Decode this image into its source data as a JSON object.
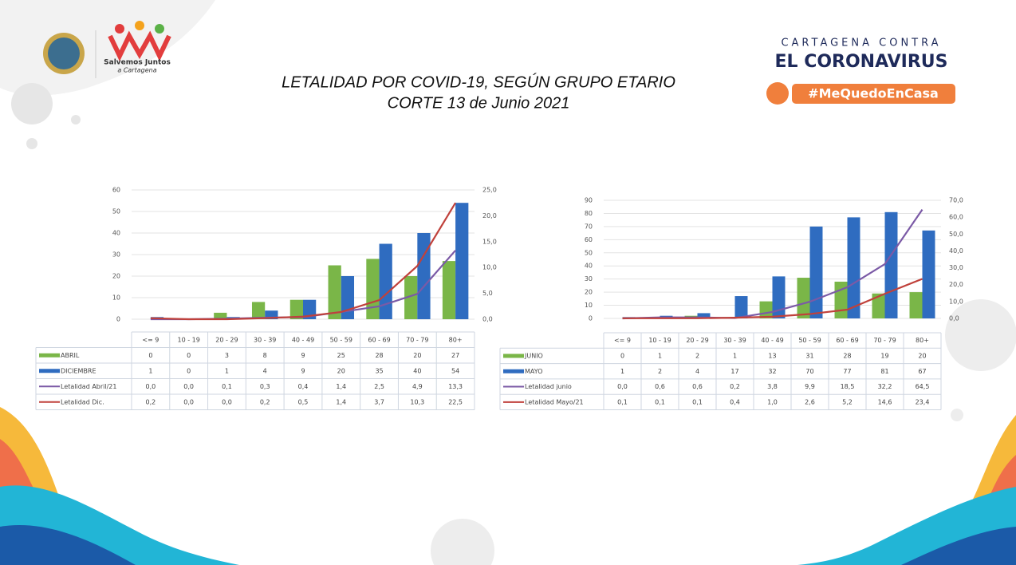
{
  "header": {
    "title_line1": "LETALIDAD POR COVID-19, SEGÚN GRUPO ETARIO",
    "title_line2": "CORTE  13 de Junio 2021",
    "logo_left_line1": "Salvemos Juntos",
    "logo_left_line2": "a Cartagena",
    "logo_right_line1": "CARTAGENA CONTRA",
    "logo_right_line2": "EL CORONAVIRUS",
    "logo_right_tag": "#MeQuedoEnCasa"
  },
  "chart_data": [
    {
      "type": "bar-line",
      "categories": [
        "<= 9",
        "10 - 19",
        "20 - 29",
        "30 - 39",
        "40 - 49",
        "50 - 59",
        "60 - 69",
        "70 - 79",
        "80+"
      ],
      "ylim": [
        0,
        60
      ],
      "yticks": [
        0,
        10,
        20,
        30,
        40,
        50,
        60
      ],
      "y2lim": [
        0,
        25
      ],
      "y2ticks": [
        {
          "value": 0,
          "label": "0,0"
        },
        {
          "value": 5,
          "label": "5,0"
        },
        {
          "value": 10,
          "label": "10,0"
        },
        {
          "value": 15,
          "label": "15,0"
        },
        {
          "value": 20,
          "label": "20,0"
        },
        {
          "value": 25,
          "label": "25,0"
        }
      ],
      "grid": true,
      "series": [
        {
          "name": "ABRIL",
          "type": "bar",
          "color": "#7ab648",
          "values": [
            0,
            0,
            3,
            8,
            9,
            25,
            28,
            20,
            27
          ]
        },
        {
          "name": "DICIEMBRE",
          "type": "bar",
          "color": "#2f6cc0",
          "values": [
            1,
            0,
            1,
            4,
            9,
            20,
            35,
            40,
            54
          ]
        },
        {
          "name": "Letalidad Abril/21",
          "type": "line",
          "axis": "y2",
          "color": "#7b5aa6",
          "values": [
            0.0,
            0.0,
            0.1,
            0.3,
            0.4,
            1.4,
            2.5,
            4.9,
            13.3
          ],
          "value_labels": [
            "0,0",
            "0,0",
            "0,1",
            "0,3",
            "0,4",
            "1,4",
            "2,5",
            "4,9",
            "13,3"
          ]
        },
        {
          "name": "Letalidad Dic.",
          "type": "line",
          "axis": "y2",
          "color": "#c0413b",
          "values": [
            0.2,
            0.0,
            0.0,
            0.2,
            0.5,
            1.4,
            3.7,
            10.3,
            22.5
          ],
          "value_labels": [
            "0,2",
            "0,0",
            "0,0",
            "0,2",
            "0,5",
            "1,4",
            "3,7",
            "10,3",
            "22,5"
          ]
        }
      ]
    },
    {
      "type": "bar-line",
      "categories": [
        "<= 9",
        "10 - 19",
        "20 - 29",
        "30 - 39",
        "40 - 49",
        "50 - 59",
        "60 - 69",
        "70 - 79",
        "80+"
      ],
      "ylim": [
        0,
        90
      ],
      "yticks": [
        0,
        10,
        20,
        30,
        40,
        50,
        60,
        70,
        80,
        90
      ],
      "y2lim": [
        0,
        70
      ],
      "y2ticks": [
        {
          "value": 0,
          "label": "0,0"
        },
        {
          "value": 10,
          "label": "10,0"
        },
        {
          "value": 20,
          "label": "20,0"
        },
        {
          "value": 30,
          "label": "30,0"
        },
        {
          "value": 40,
          "label": "40,0"
        },
        {
          "value": 50,
          "label": "50,0"
        },
        {
          "value": 60,
          "label": "60,0"
        },
        {
          "value": 70,
          "label": "70,0"
        }
      ],
      "grid": true,
      "series": [
        {
          "name": "JUNIO",
          "type": "bar",
          "color": "#7ab648",
          "values": [
            0,
            1,
            2,
            1,
            13,
            31,
            28,
            19,
            20
          ]
        },
        {
          "name": "MAYO",
          "type": "bar",
          "color": "#2f6cc0",
          "values": [
            1,
            2,
            4,
            17,
            32,
            70,
            77,
            81,
            67
          ]
        },
        {
          "name": "Letalidad junio",
          "type": "line",
          "axis": "y2",
          "color": "#7b5aa6",
          "values": [
            0.0,
            0.6,
            0.6,
            0.2,
            3.8,
            9.9,
            18.5,
            32.2,
            64.5
          ],
          "value_labels": [
            "0,0",
            "0,6",
            "0,6",
            "0,2",
            "3,8",
            "9,9",
            "18,5",
            "32,2",
            "64,5"
          ]
        },
        {
          "name": "Letalidad Mayo/21",
          "type": "line",
          "axis": "y2",
          "color": "#c0413b",
          "values": [
            0.1,
            0.1,
            0.1,
            0.4,
            1.0,
            2.6,
            5.2,
            14.6,
            23.4
          ],
          "value_labels": [
            "0,1",
            "0,1",
            "0,1",
            "0,4",
            "1,0",
            "2,6",
            "5,2",
            "14,6",
            "23,4"
          ]
        }
      ]
    }
  ]
}
